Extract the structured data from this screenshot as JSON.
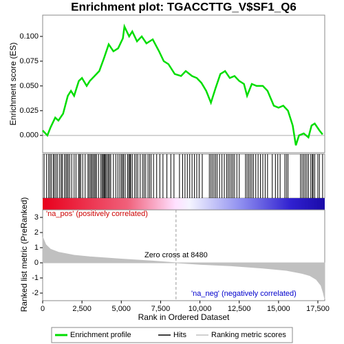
{
  "chart_data": [
    {
      "type": "line",
      "title": "Enrichment plot: TGACCTTG_V$SF1_Q6",
      "ylabel": "Enrichment score (ES)",
      "xlim": [
        0,
        17937
      ],
      "ylim": [
        -0.0175,
        0.1215
      ],
      "yticks": [
        {
          "value": 0,
          "label": "0.000"
        },
        {
          "value": 0.025,
          "label": "0.025"
        },
        {
          "value": 0.05,
          "label": "0.050"
        },
        {
          "value": 0.075,
          "label": "0.075"
        },
        {
          "value": 0.1,
          "label": "0.100"
        }
      ],
      "grid": true,
      "series": [
        {
          "name": "Enrichment profile",
          "color": "#00dd00",
          "x": [
            0,
            300,
            500,
            800,
            1000,
            1300,
            1600,
            1800,
            2000,
            2300,
            2500,
            2800,
            3000,
            3300,
            3600,
            3900,
            4200,
            4500,
            4800,
            5100,
            5200,
            5500,
            5700,
            6000,
            6300,
            6600,
            7000,
            7400,
            7700,
            8000,
            8400,
            8800,
            9100,
            9500,
            9800,
            10100,
            10400,
            10700,
            11000,
            11300,
            11600,
            11900,
            12200,
            12500,
            12800,
            13000,
            13300,
            13600,
            14000,
            14300,
            14700,
            15000,
            15300,
            15600,
            15900,
            16100,
            16300,
            16600,
            16900,
            17100,
            17300,
            17600,
            17800
          ],
          "values": [
            0.005,
            0.0,
            0.008,
            0.018,
            0.015,
            0.022,
            0.04,
            0.045,
            0.04,
            0.055,
            0.058,
            0.05,
            0.055,
            0.06,
            0.065,
            0.078,
            0.092,
            0.085,
            0.088,
            0.098,
            0.11,
            0.1,
            0.105,
            0.095,
            0.1,
            0.093,
            0.097,
            0.085,
            0.075,
            0.072,
            0.062,
            0.06,
            0.065,
            0.06,
            0.058,
            0.053,
            0.045,
            0.033,
            0.048,
            0.062,
            0.065,
            0.058,
            0.06,
            0.055,
            0.052,
            0.04,
            0.052,
            0.05,
            0.05,
            0.045,
            0.03,
            0.028,
            0.03,
            0.025,
            0.01,
            -0.01,
            0.0,
            0.002,
            -0.002,
            0.01,
            0.012,
            0.005,
            0.001
          ]
        }
      ],
      "hits": {
        "name": "Hits",
        "color": "#000000",
        "x": [
          90,
          250,
          380,
          470,
          560,
          680,
          750,
          850,
          950,
          1080,
          1180,
          1250,
          1380,
          1470,
          1550,
          1630,
          1720,
          1850,
          2000,
          2120,
          2280,
          2350,
          2420,
          2550,
          2700,
          2880,
          2960,
          3050,
          3120,
          3200,
          3280,
          3350,
          3430,
          3560,
          3700,
          3780,
          3850,
          3900,
          3960,
          4020,
          4100,
          4180,
          4250,
          4330,
          4500,
          4650,
          4780,
          4900,
          5000,
          5080,
          5150,
          5250,
          5400,
          5480,
          5550,
          5600,
          5700,
          5850,
          5950,
          6050,
          6200,
          6350,
          6450,
          6550,
          6700,
          6800,
          6900,
          7050,
          7250,
          7450,
          7650,
          7900,
          8150,
          8350,
          8700,
          8900,
          9050,
          9200,
          9350,
          9500,
          9650,
          9800,
          9950,
          10150,
          10600,
          10700,
          10800,
          10900,
          11000,
          11100,
          11250,
          11400,
          11550,
          11700,
          11800,
          11900,
          12000,
          12100,
          12200,
          12350,
          12500,
          12900,
          13000,
          13100,
          13200,
          13300,
          13400,
          13550,
          13700,
          13850,
          14000,
          14150,
          14300,
          14600,
          14800,
          14950,
          15100,
          15400,
          15500,
          15600,
          16400,
          16500,
          16600,
          16700,
          16800,
          16900,
          17050,
          17150,
          17200,
          17300,
          17500,
          17600,
          17800
        ]
      }
    },
    {
      "type": "area",
      "ylabel": "Ranked list metric (PreRanked)",
      "xlabel": "Rank in Ordered Dataset",
      "xlim": [
        0,
        17937
      ],
      "xticks": [
        0,
        {
          "value": 2500,
          "label": "2,500"
        },
        {
          "value": 5000,
          "label": "5,000"
        },
        {
          "value": 7500,
          "label": "7,500"
        },
        {
          "value": 10000,
          "label": "10,000"
        },
        {
          "value": 12500,
          "label": "12,500"
        },
        {
          "value": 15000,
          "label": "15,000"
        },
        {
          "value": 17500,
          "label": "17,500"
        }
      ],
      "ylim": [
        -2.5,
        3.5
      ],
      "yticks": [
        3,
        2,
        1,
        0,
        -1,
        -2
      ],
      "zero_cross": 8480,
      "zero_cross_label": "Zero cross at 8480",
      "pos_label": "'na_pos' (positively correlated)",
      "neg_label": "'na_neg' (negatively correlated)",
      "series": [
        {
          "name": "Ranking metric scores",
          "color": "#c0c0c0",
          "x": [
            0,
            200,
            500,
            1000,
            2000,
            3000,
            5000,
            7000,
            8480,
            10000,
            12000,
            14000,
            15500,
            16500,
            17000,
            17400,
            17700,
            17850,
            17937
          ],
          "values": [
            1.7,
            1.2,
            0.9,
            0.7,
            0.5,
            0.4,
            0.25,
            0.12,
            0,
            -0.1,
            -0.2,
            -0.35,
            -0.5,
            -0.7,
            -0.85,
            -1.1,
            -1.5,
            -2.0,
            -2.4
          ]
        }
      ]
    }
  ]
}
